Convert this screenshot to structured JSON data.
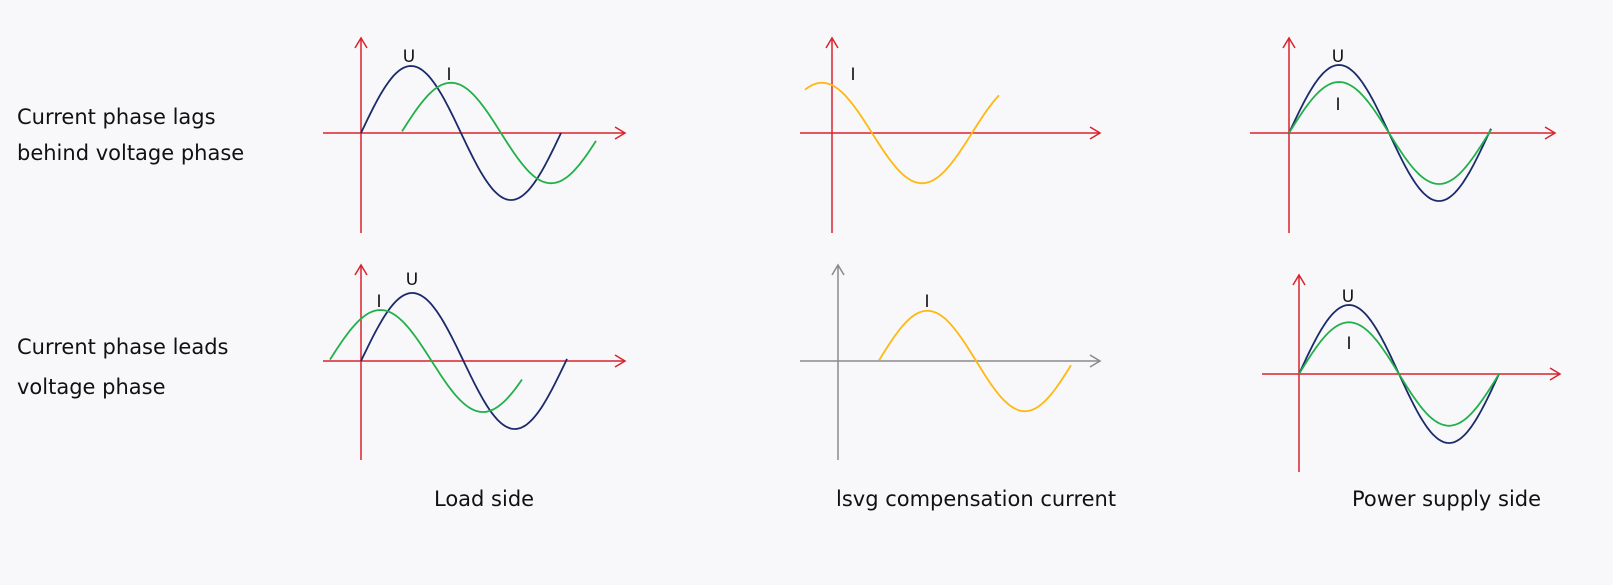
{
  "row_labels": [
    [
      "Current phase lags",
      "behind voltage phase"
    ],
    [
      "Current phase leads",
      "voltage phase"
    ]
  ],
  "column_labels": [
    "Load side",
    "lsvg compensation current",
    "Power supply side"
  ],
  "colors": {
    "axis": "#d9232d",
    "axis_neutral": "#8a8a8a",
    "voltage": "#1b2a6b",
    "current": "#22b04b",
    "compensation": "#ffb810"
  },
  "panels": [
    {
      "id": "lag-load",
      "axis": "axis",
      "waves": [
        {
          "label": "U",
          "color": "voltage",
          "phase_deg": 0,
          "amplitude": 1.0
        },
        {
          "label": "I",
          "color": "current",
          "phase_deg": -72,
          "amplitude": 0.75
        }
      ]
    },
    {
      "id": "lag-svg",
      "axis": "axis",
      "waves": [
        {
          "label": "I",
          "color": "compensation",
          "phase_deg": 54,
          "amplitude": 0.75
        }
      ]
    },
    {
      "id": "lag-supply",
      "axis": "axis",
      "waves": [
        {
          "label": "U",
          "color": "voltage",
          "phase_deg": 0,
          "amplitude": 1.0
        },
        {
          "label": "I",
          "color": "current",
          "phase_deg": 0,
          "amplitude": 0.75
        }
      ]
    },
    {
      "id": "lead-load",
      "axis": "axis",
      "waves": [
        {
          "label": "U",
          "color": "voltage",
          "phase_deg": 0,
          "amplitude": 1.0
        },
        {
          "label": "I",
          "color": "current",
          "phase_deg": 56,
          "amplitude": 0.75
        }
      ]
    },
    {
      "id": "lead-svg",
      "axis": "axis_neutral",
      "waves": [
        {
          "label": "I",
          "color": "compensation",
          "phase_deg": -75,
          "amplitude": 0.75
        }
      ]
    },
    {
      "id": "lead-supply",
      "axis": "axis",
      "waves": [
        {
          "label": "U",
          "color": "voltage",
          "phase_deg": 0,
          "amplitude": 1.0
        },
        {
          "label": "I",
          "color": "current",
          "phase_deg": 0,
          "amplitude": 0.75
        }
      ]
    }
  ]
}
